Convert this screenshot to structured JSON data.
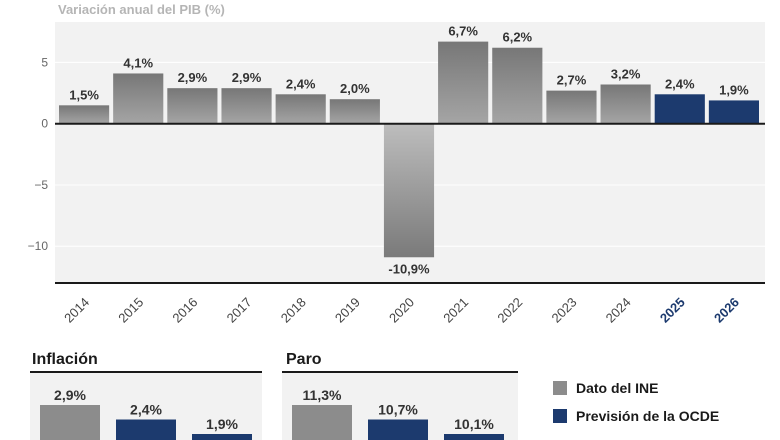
{
  "chart_data": [
    {
      "type": "bar",
      "title": "Variación anual del PIB (%)",
      "categories": [
        "2014",
        "2015",
        "2016",
        "2017",
        "2018",
        "2019",
        "2020",
        "2021",
        "2022",
        "2023",
        "2024",
        "2025",
        "2026"
      ],
      "values": [
        1.5,
        4.1,
        2.9,
        2.9,
        2.4,
        2.0,
        -10.9,
        6.7,
        6.2,
        2.7,
        3.2,
        2.4,
        1.9
      ],
      "data_labels": [
        "1,5%",
        "4,1%",
        "2,9%",
        "2,9%",
        "2,4%",
        "2,0%",
        "-10,9%",
        "6,7%",
        "6,2%",
        "2,7%",
        "3,2%",
        "2,4%",
        "1,9%"
      ],
      "series_type": [
        "ine",
        "ine",
        "ine",
        "ine",
        "ine",
        "ine",
        "ine",
        "ine",
        "ine",
        "ine",
        "ine",
        "ocde",
        "ocde"
      ],
      "ylim": [
        -13,
        8.3
      ],
      "yticks": [
        5,
        0,
        -5,
        -10
      ],
      "ytick_labels": [
        "5",
        "0",
        "−5",
        "−10"
      ],
      "grid": true
    },
    {
      "type": "bar",
      "title": "Inflación",
      "values": [
        2.9,
        2.4,
        1.9
      ],
      "data_labels": [
        "2,9%",
        "2,4%",
        "1,9%"
      ],
      "series_type": [
        "ine",
        "ocde",
        "ocde"
      ]
    },
    {
      "type": "bar",
      "title": "Paro",
      "values": [
        11.3,
        10.7,
        10.1
      ],
      "data_labels": [
        "11,3%",
        "10,7%",
        "10,1%"
      ],
      "series_type": [
        "ine",
        "ocde",
        "ocde"
      ]
    }
  ],
  "legend": [
    {
      "label": "Dato del INE",
      "color": "#8c8c8c"
    },
    {
      "label": "Previsión de la OCDE",
      "color": "#1c3a6e"
    }
  ],
  "colors": {
    "ine": "#8c8c8c",
    "ocde": "#1c3a6e",
    "plot_bg": "#f2f2f2",
    "grid": "#ffffff",
    "axis": "#1a1a1a"
  }
}
